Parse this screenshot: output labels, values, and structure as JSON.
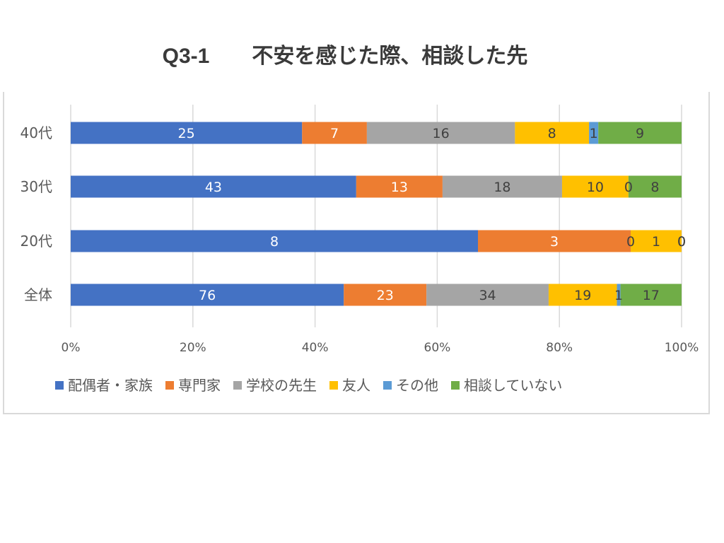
{
  "chart_data": {
    "type": "bar",
    "subtype": "stacked-100-horizontal",
    "title": "Q3-1　　不安を感じた際、相談した先",
    "categories": [
      "40代",
      "30代",
      "20代",
      "全体"
    ],
    "series": [
      {
        "name": "配偶者・家族",
        "color": "#4472c4",
        "label_color": "#ffffff",
        "values": [
          25,
          43,
          8,
          76
        ]
      },
      {
        "name": "専門家",
        "color": "#ed7d31",
        "label_color": "#ffffff",
        "values": [
          7,
          13,
          3,
          23
        ]
      },
      {
        "name": "学校の先生",
        "color": "#a5a5a5",
        "label_color": "#404040",
        "values": [
          16,
          18,
          0,
          34
        ]
      },
      {
        "name": "友人",
        "color": "#ffc000",
        "label_color": "#404040",
        "values": [
          8,
          10,
          1,
          19
        ]
      },
      {
        "name": "その他",
        "color": "#5b9bd5",
        "label_color": "#404040",
        "values": [
          1,
          0,
          0,
          1
        ]
      },
      {
        "name": "相談していない",
        "color": "#70ad47",
        "label_color": "#404040",
        "values": [
          9,
          8,
          0,
          17
        ]
      }
    ],
    "x_ticks": [
      "0%",
      "20%",
      "40%",
      "60%",
      "80%",
      "100%"
    ],
    "xlim": [
      0,
      100
    ],
    "grid": true,
    "legend_position": "bottom"
  }
}
